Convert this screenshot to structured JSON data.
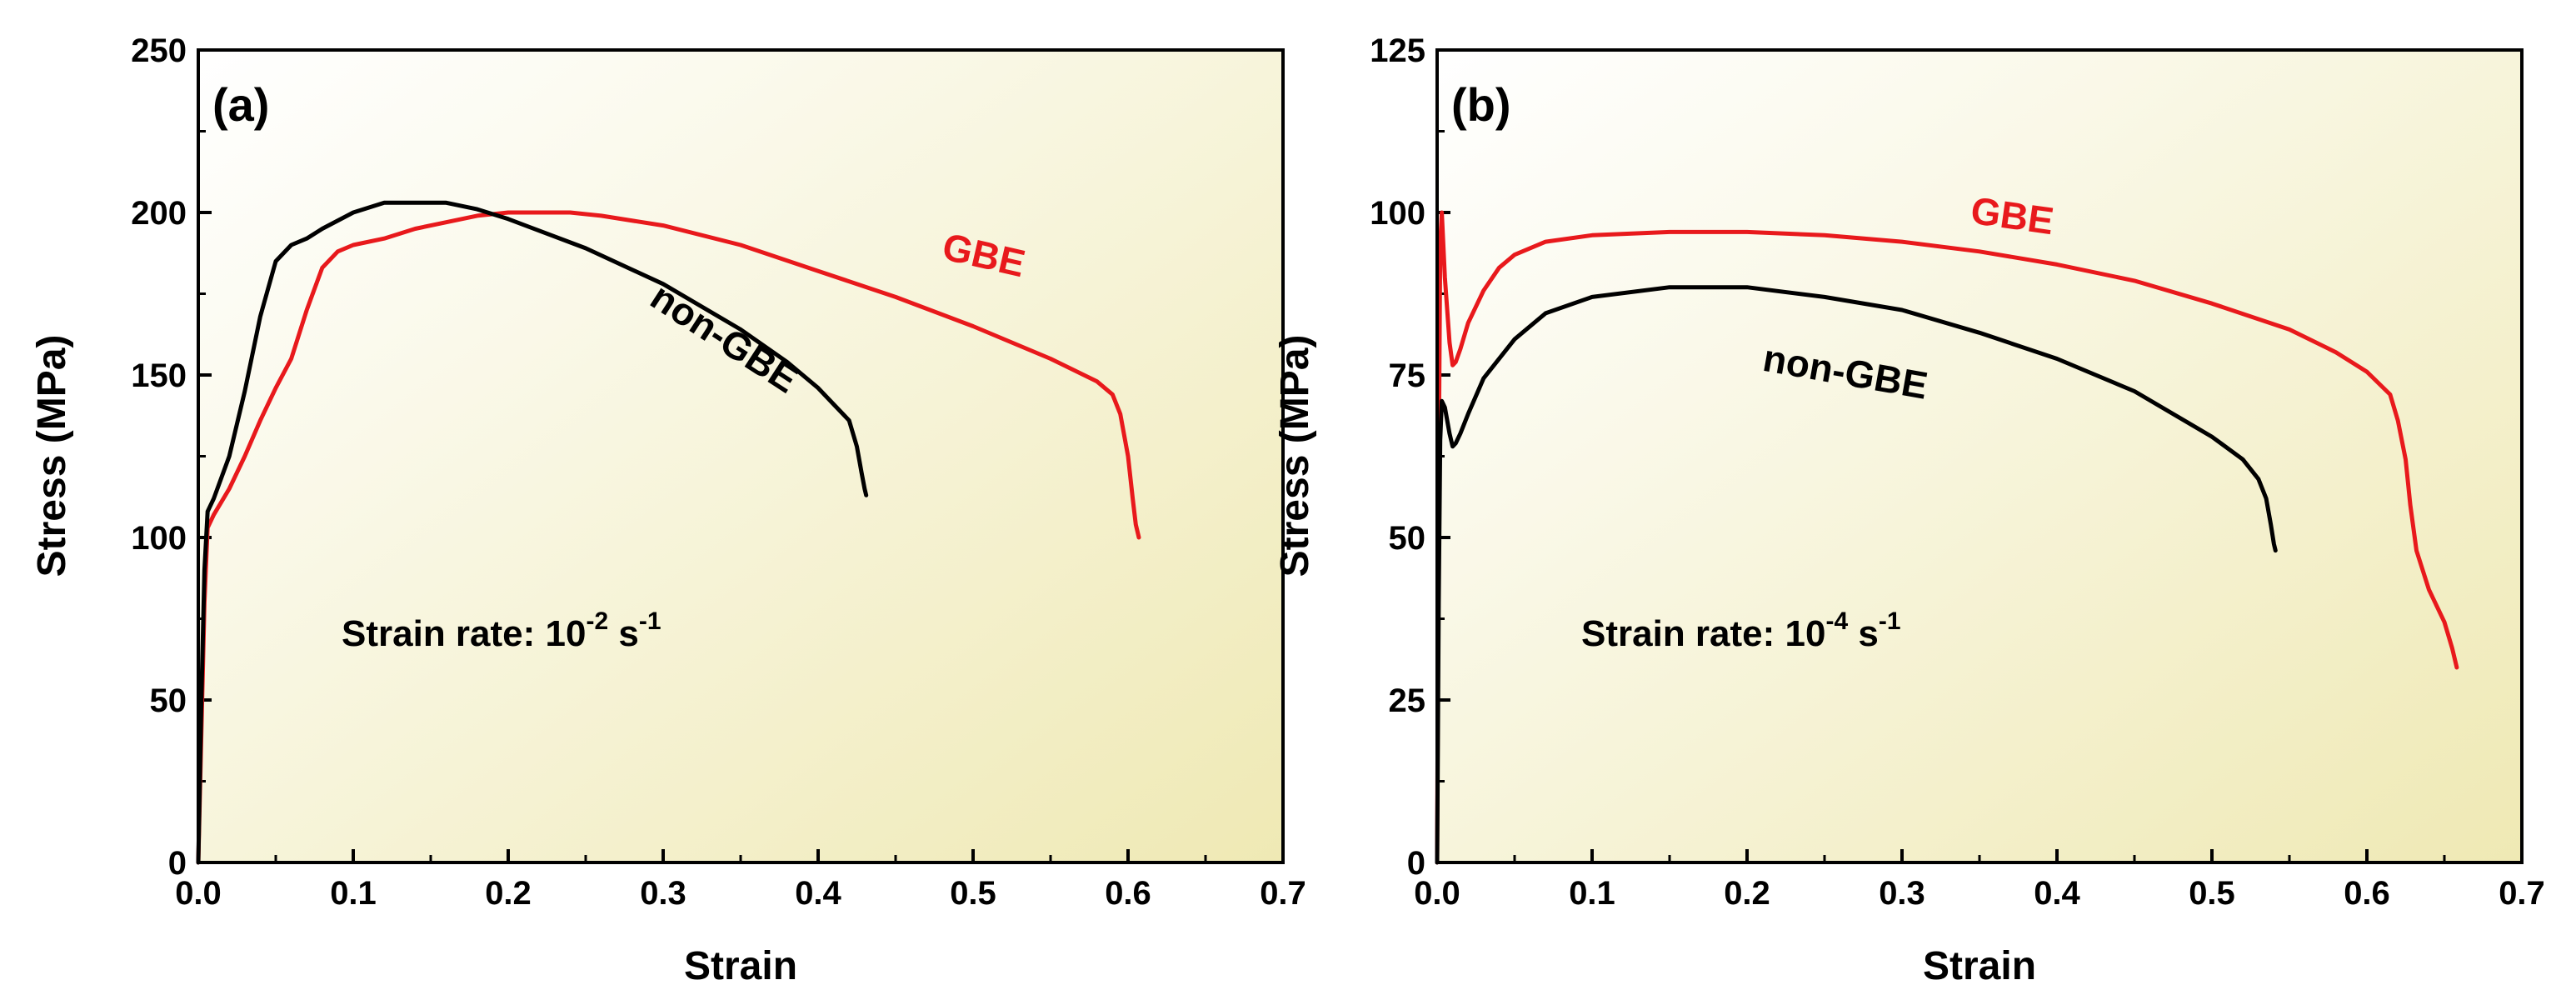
{
  "chart_data": [
    {
      "type": "line",
      "panel_label": "(a)",
      "xlabel": "Strain",
      "ylabel": "Stress (MPa)",
      "xlim": [
        0,
        0.7
      ],
      "ylim": [
        0,
        250
      ],
      "xticks": [
        0.0,
        0.1,
        0.2,
        0.3,
        0.4,
        0.5,
        0.6,
        0.7
      ],
      "yticks": [
        0,
        50,
        100,
        150,
        200,
        250
      ],
      "xtick_labels": [
        "0.0",
        "0.1",
        "0.2",
        "0.3",
        "0.4",
        "0.5",
        "0.6",
        "0.7"
      ],
      "ytick_labels": [
        "0",
        "50",
        "100",
        "150",
        "200",
        "250"
      ],
      "grid": false,
      "annotation": {
        "prefix": "Strain rate: 10",
        "exp": "-2",
        "unit": " s",
        "unit_exp": "-1"
      },
      "series": [
        {
          "name": "GBE",
          "color": "#e8191c",
          "label_text": "GBE",
          "label_at": [
            0.505,
            183
          ],
          "label_rotation": 13,
          "x": [
            0.0,
            0.002,
            0.004,
            0.006,
            0.01,
            0.02,
            0.03,
            0.04,
            0.05,
            0.06,
            0.07,
            0.08,
            0.09,
            0.1,
            0.12,
            0.14,
            0.16,
            0.18,
            0.2,
            0.22,
            0.24,
            0.26,
            0.3,
            0.35,
            0.4,
            0.45,
            0.5,
            0.55,
            0.58,
            0.59,
            0.595,
            0.6,
            0.603,
            0.605,
            0.607
          ],
          "y": [
            0,
            40,
            80,
            103,
            107,
            115,
            125,
            136,
            146,
            155,
            170,
            183,
            188,
            190,
            192,
            195,
            197,
            199,
            200,
            200,
            200,
            199,
            196,
            190,
            182,
            174,
            165,
            155,
            148,
            144,
            138,
            125,
            112,
            104,
            100
          ]
        },
        {
          "name": "non-GBE",
          "color": "#000000",
          "label_text": "non-GBE",
          "label_at": [
            0.335,
            158
          ],
          "label_rotation": 33,
          "x": [
            0.0,
            0.002,
            0.004,
            0.006,
            0.01,
            0.02,
            0.03,
            0.04,
            0.05,
            0.06,
            0.07,
            0.08,
            0.1,
            0.12,
            0.14,
            0.16,
            0.18,
            0.2,
            0.25,
            0.3,
            0.35,
            0.38,
            0.4,
            0.41,
            0.42,
            0.425,
            0.428,
            0.43,
            0.431
          ],
          "y": [
            0,
            50,
            90,
            108,
            112,
            125,
            145,
            168,
            185,
            190,
            192,
            195,
            200,
            203,
            203,
            203,
            201,
            198,
            189,
            178,
            164,
            154,
            146,
            141,
            136,
            128,
            120,
            115,
            113
          ]
        }
      ]
    },
    {
      "type": "line",
      "panel_label": "(b)",
      "xlabel": "Strain",
      "ylabel": "Stress (MPa)",
      "xlim": [
        0,
        0.7
      ],
      "ylim": [
        0,
        125
      ],
      "xticks": [
        0.0,
        0.1,
        0.2,
        0.3,
        0.4,
        0.5,
        0.6,
        0.7
      ],
      "yticks": [
        0,
        25,
        50,
        75,
        100,
        125
      ],
      "xtick_labels": [
        "0.0",
        "0.1",
        "0.2",
        "0.3",
        "0.4",
        "0.5",
        "0.6",
        "0.7"
      ],
      "ytick_labels": [
        "0",
        "25",
        "50",
        "75",
        "100",
        "125"
      ],
      "grid": false,
      "annotation": {
        "prefix": "Strain rate: 10",
        "exp": "-4",
        "unit": " s",
        "unit_exp": "-1"
      },
      "series": [
        {
          "name": "GBE",
          "color": "#e8191c",
          "label_text": "GBE",
          "label_at": [
            0.37,
            97.5
          ],
          "label_rotation": 8,
          "x": [
            0.0,
            0.001,
            0.002,
            0.003,
            0.005,
            0.008,
            0.01,
            0.012,
            0.015,
            0.02,
            0.03,
            0.04,
            0.05,
            0.07,
            0.1,
            0.15,
            0.2,
            0.25,
            0.3,
            0.35,
            0.4,
            0.45,
            0.5,
            0.55,
            0.58,
            0.6,
            0.615,
            0.62,
            0.625,
            0.628,
            0.632,
            0.64,
            0.65,
            0.655,
            0.658
          ],
          "y": [
            0,
            60,
            95,
            100,
            90,
            80,
            76.5,
            77,
            79,
            83,
            88,
            91.5,
            93.5,
            95.5,
            96.5,
            97,
            97,
            96.5,
            95.5,
            94,
            92,
            89.5,
            86,
            82,
            78.5,
            75.5,
            72,
            68,
            62,
            55,
            48,
            42,
            37,
            33,
            30
          ]
        },
        {
          "name": "non-GBE",
          "color": "#000000",
          "label_text": "non-GBE",
          "label_at": [
            0.262,
            73.5
          ],
          "label_rotation": 10,
          "x": [
            0.0,
            0.001,
            0.002,
            0.003,
            0.005,
            0.008,
            0.01,
            0.012,
            0.015,
            0.02,
            0.03,
            0.05,
            0.07,
            0.1,
            0.15,
            0.2,
            0.25,
            0.3,
            0.35,
            0.4,
            0.45,
            0.5,
            0.52,
            0.53,
            0.535,
            0.538,
            0.54,
            0.541
          ],
          "y": [
            0,
            40,
            65,
            71,
            70,
            66,
            64,
            64.5,
            66,
            69,
            74.5,
            80.5,
            84.5,
            87,
            88.5,
            88.5,
            87,
            85,
            81.5,
            77.5,
            72.5,
            65.5,
            62,
            59,
            56,
            52,
            49,
            48
          ]
        }
      ]
    }
  ]
}
